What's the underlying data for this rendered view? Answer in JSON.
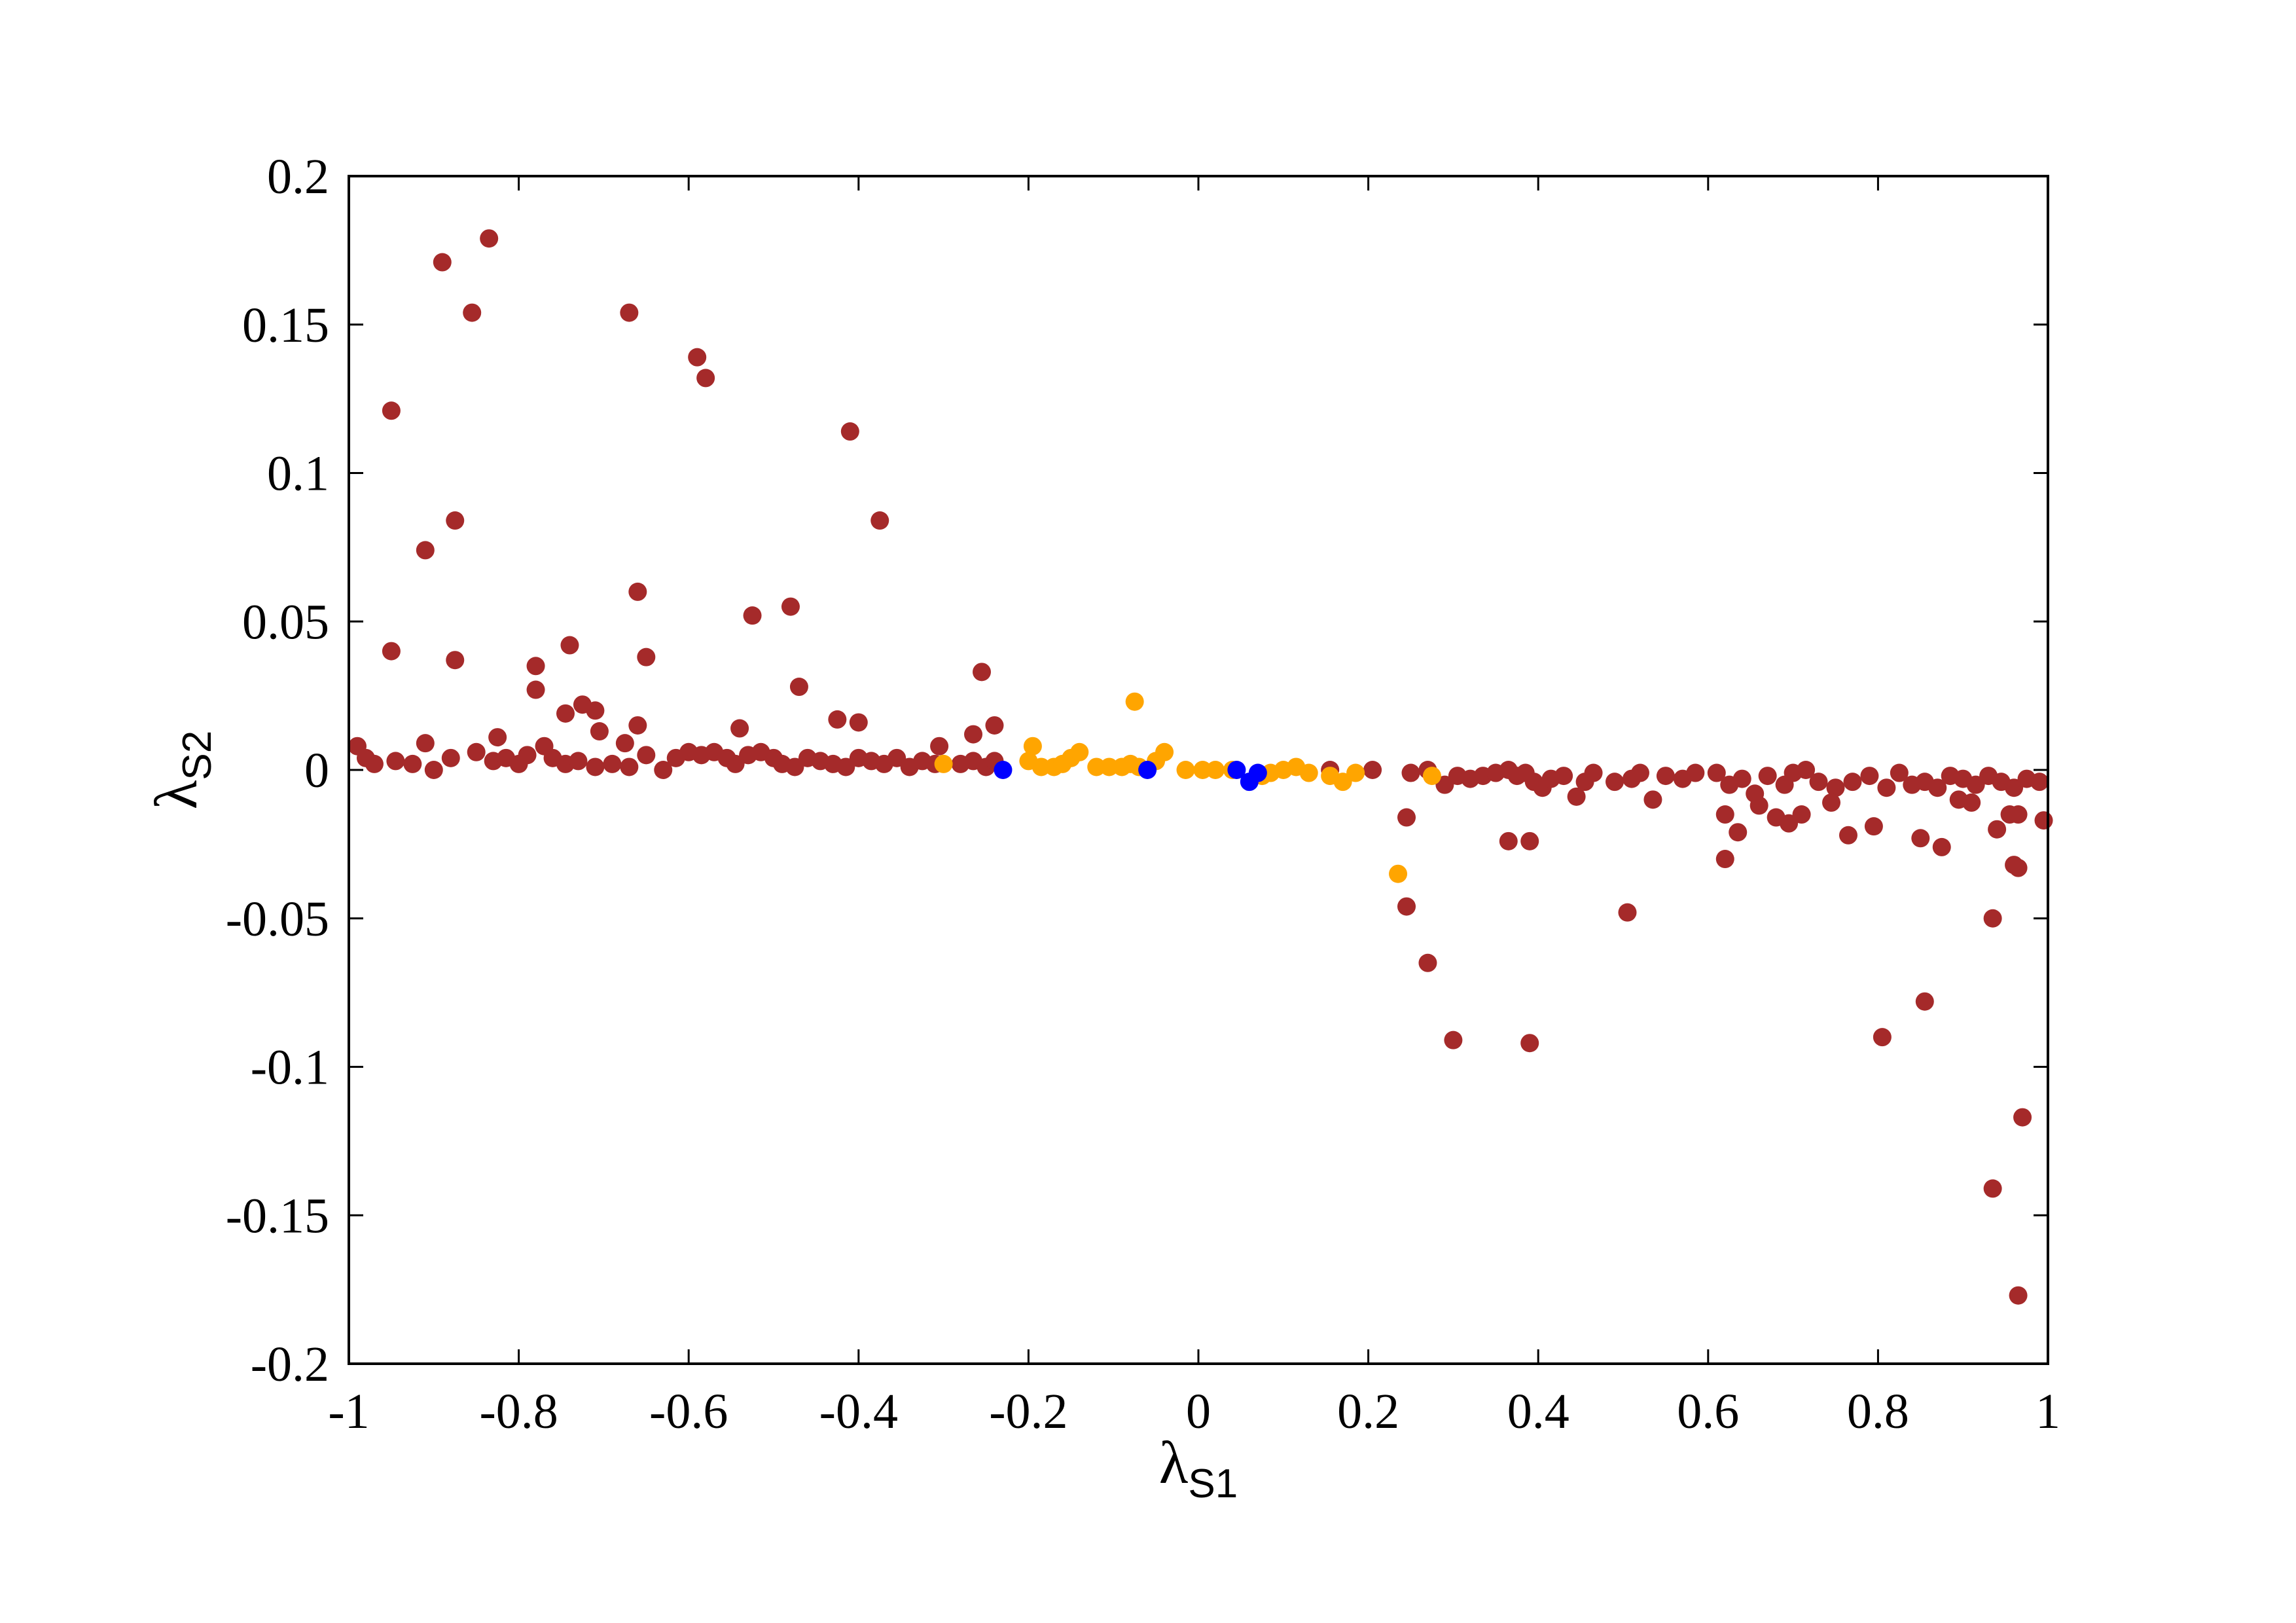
{
  "chart_data": {
    "type": "scatter",
    "xlabel": {
      "symbol": "λ",
      "subscript": "S1"
    },
    "ylabel": {
      "symbol": "λ",
      "subscript": "S2"
    },
    "xlim": [
      -1,
      1
    ],
    "ylim": [
      -0.2,
      0.2
    ],
    "xticks": [
      {
        "value": -1,
        "label": "-1"
      },
      {
        "value": -0.8,
        "label": "-0.8"
      },
      {
        "value": -0.6,
        "label": "-0.6"
      },
      {
        "value": -0.4,
        "label": "-0.4"
      },
      {
        "value": -0.2,
        "label": "-0.2"
      },
      {
        "value": 0,
        "label": "0"
      },
      {
        "value": 0.2,
        "label": "0.2"
      },
      {
        "value": 0.4,
        "label": "0.4"
      },
      {
        "value": 0.6,
        "label": "0.6"
      },
      {
        "value": 0.8,
        "label": "0.8"
      },
      {
        "value": 1,
        "label": "1"
      }
    ],
    "yticks": [
      {
        "value": 0.2,
        "label": "0.2"
      },
      {
        "value": 0.15,
        "label": "0.15"
      },
      {
        "value": 0.1,
        "label": "0.1"
      },
      {
        "value": 0.05,
        "label": "0.05"
      },
      {
        "value": 0,
        "label": "0"
      },
      {
        "value": -0.05,
        "label": "-0.05"
      },
      {
        "value": -0.1,
        "label": "-0.1"
      },
      {
        "value": -0.15,
        "label": "-0.15"
      },
      {
        "value": -0.2,
        "label": "-0.2"
      }
    ],
    "grid": false,
    "legend": "none",
    "series": [
      {
        "color": "#a52a2a",
        "points": [
          [
            -0.95,
            0.121
          ],
          [
            -0.89,
            0.171
          ],
          [
            -0.855,
            0.154
          ],
          [
            -0.835,
            0.179
          ],
          [
            -0.67,
            0.154
          ],
          [
            -0.59,
            0.139
          ],
          [
            -0.58,
            0.132
          ],
          [
            -0.41,
            0.114
          ],
          [
            -0.375,
            0.084
          ],
          [
            -0.875,
            0.084
          ],
          [
            -0.91,
            0.074
          ],
          [
            -0.66,
            0.06
          ],
          [
            -0.48,
            0.055
          ],
          [
            -0.525,
            0.052
          ],
          [
            -0.95,
            0.04
          ],
          [
            -0.875,
            0.037
          ],
          [
            -0.65,
            0.038
          ],
          [
            -0.78,
            0.035
          ],
          [
            -0.74,
            0.042
          ],
          [
            -0.255,
            0.033
          ],
          [
            -0.47,
            0.028
          ],
          [
            -0.78,
            0.027
          ],
          [
            -0.725,
            0.022
          ],
          [
            -0.71,
            0.02
          ],
          [
            -0.745,
            0.019
          ],
          [
            -0.425,
            0.017
          ],
          [
            -0.4,
            0.016
          ],
          [
            -0.66,
            0.015
          ],
          [
            -0.705,
            0.013
          ],
          [
            -0.54,
            0.014
          ],
          [
            -0.265,
            0.012
          ],
          [
            -0.24,
            0.015
          ],
          [
            -0.825,
            0.011
          ],
          [
            -0.675,
            0.009
          ],
          [
            -0.91,
            0.009
          ],
          [
            -0.305,
            0.008
          ],
          [
            -0.99,
            0.008
          ],
          [
            -0.98,
            0.004
          ],
          [
            -0.97,
            0.002
          ],
          [
            -0.945,
            0.003
          ],
          [
            -0.925,
            0.002
          ],
          [
            -0.9,
            0.0
          ],
          [
            -0.88,
            0.004
          ],
          [
            -0.85,
            0.006
          ],
          [
            -0.83,
            0.003
          ],
          [
            -0.815,
            0.004
          ],
          [
            -0.8,
            0.002
          ],
          [
            -0.79,
            0.005
          ],
          [
            -0.77,
            0.008
          ],
          [
            -0.76,
            0.004
          ],
          [
            -0.745,
            0.002
          ],
          [
            -0.73,
            0.003
          ],
          [
            -0.71,
            0.001
          ],
          [
            -0.69,
            0.002
          ],
          [
            -0.67,
            0.001
          ],
          [
            -0.65,
            0.005
          ],
          [
            -0.63,
            0.0
          ],
          [
            -0.615,
            0.004
          ],
          [
            -0.6,
            0.006
          ],
          [
            -0.585,
            0.005
          ],
          [
            -0.57,
            0.006
          ],
          [
            -0.555,
            0.004
          ],
          [
            -0.545,
            0.002
          ],
          [
            -0.53,
            0.005
          ],
          [
            -0.515,
            0.006
          ],
          [
            -0.5,
            0.004
          ],
          [
            -0.49,
            0.002
          ],
          [
            -0.475,
            0.001
          ],
          [
            -0.46,
            0.004
          ],
          [
            -0.445,
            0.003
          ],
          [
            -0.43,
            0.002
          ],
          [
            -0.415,
            0.001
          ],
          [
            -0.4,
            0.004
          ],
          [
            -0.385,
            0.003
          ],
          [
            -0.37,
            0.002
          ],
          [
            -0.355,
            0.004
          ],
          [
            -0.34,
            0.001
          ],
          [
            -0.325,
            0.003
          ],
          [
            -0.31,
            0.002
          ],
          [
            -0.28,
            0.002
          ],
          [
            -0.265,
            0.003
          ],
          [
            -0.25,
            0.001
          ],
          [
            -0.24,
            0.003
          ],
          [
            0.155,
            0.0
          ],
          [
            0.205,
            0.0
          ],
          [
            0.25,
            -0.001
          ],
          [
            0.27,
            0.0
          ],
          [
            0.29,
            -0.005
          ],
          [
            0.305,
            -0.002
          ],
          [
            0.32,
            -0.003
          ],
          [
            0.335,
            -0.002
          ],
          [
            0.35,
            -0.001
          ],
          [
            0.365,
            0.0
          ],
          [
            0.375,
            -0.002
          ],
          [
            0.385,
            -0.001
          ],
          [
            0.395,
            -0.004
          ],
          [
            0.405,
            -0.006
          ],
          [
            0.415,
            -0.003
          ],
          [
            0.43,
            -0.002
          ],
          [
            0.445,
            -0.009
          ],
          [
            0.455,
            -0.004
          ],
          [
            0.465,
            -0.001
          ],
          [
            0.49,
            -0.004
          ],
          [
            0.51,
            -0.003
          ],
          [
            0.52,
            -0.001
          ],
          [
            0.535,
            -0.01
          ],
          [
            0.55,
            -0.002
          ],
          [
            0.57,
            -0.003
          ],
          [
            0.585,
            -0.001
          ],
          [
            0.61,
            -0.001
          ],
          [
            0.625,
            -0.005
          ],
          [
            0.64,
            -0.003
          ],
          [
            0.655,
            -0.008
          ],
          [
            0.67,
            -0.002
          ],
          [
            0.69,
            -0.005
          ],
          [
            0.7,
            -0.001
          ],
          [
            0.715,
            0.0
          ],
          [
            0.73,
            -0.004
          ],
          [
            0.75,
            -0.006
          ],
          [
            0.77,
            -0.004
          ],
          [
            0.79,
            -0.002
          ],
          [
            0.81,
            -0.006
          ],
          [
            0.825,
            -0.001
          ],
          [
            0.84,
            -0.005
          ],
          [
            0.855,
            -0.004
          ],
          [
            0.87,
            -0.006
          ],
          [
            0.885,
            -0.002
          ],
          [
            0.9,
            -0.003
          ],
          [
            0.915,
            -0.005
          ],
          [
            0.93,
            -0.002
          ],
          [
            0.945,
            -0.004
          ],
          [
            0.96,
            -0.006
          ],
          [
            0.975,
            -0.003
          ],
          [
            0.99,
            -0.004
          ],
          [
            0.62,
            -0.015
          ],
          [
            0.635,
            -0.021
          ],
          [
            0.66,
            -0.012
          ],
          [
            0.68,
            -0.016
          ],
          [
            0.695,
            -0.018
          ],
          [
            0.71,
            -0.015
          ],
          [
            0.745,
            -0.011
          ],
          [
            0.765,
            -0.022
          ],
          [
            0.795,
            -0.019
          ],
          [
            0.85,
            -0.023
          ],
          [
            0.875,
            -0.026
          ],
          [
            0.895,
            -0.01
          ],
          [
            0.91,
            -0.011
          ],
          [
            0.94,
            -0.02
          ],
          [
            0.955,
            -0.015
          ],
          [
            0.965,
            -0.015
          ],
          [
            0.995,
            -0.017
          ],
          [
            0.62,
            -0.03
          ],
          [
            0.96,
            -0.032
          ],
          [
            0.965,
            -0.033
          ],
          [
            0.365,
            -0.024
          ],
          [
            0.39,
            -0.024
          ],
          [
            0.245,
            -0.016
          ],
          [
            0.505,
            -0.048
          ],
          [
            0.245,
            -0.046
          ],
          [
            0.935,
            -0.05
          ],
          [
            0.27,
            -0.065
          ],
          [
            0.855,
            -0.078
          ],
          [
            0.3,
            -0.091
          ],
          [
            0.39,
            -0.092
          ],
          [
            0.805,
            -0.09
          ],
          [
            0.97,
            -0.117
          ],
          [
            0.935,
            -0.141
          ],
          [
            0.965,
            -0.177
          ]
        ]
      },
      {
        "color": "#ffa500",
        "points": [
          [
            -0.3,
            0.002
          ],
          [
            -0.2,
            0.003
          ],
          [
            -0.195,
            0.008
          ],
          [
            -0.185,
            0.001
          ],
          [
            -0.17,
            0.001
          ],
          [
            -0.16,
            0.002
          ],
          [
            -0.15,
            0.004
          ],
          [
            -0.14,
            0.006
          ],
          [
            -0.12,
            0.001
          ],
          [
            -0.105,
            0.001
          ],
          [
            -0.09,
            0.001
          ],
          [
            -0.08,
            0.002
          ],
          [
            -0.07,
            0.001
          ],
          [
            -0.05,
            0.003
          ],
          [
            -0.04,
            0.006
          ],
          [
            -0.015,
            0.0
          ],
          [
            0.005,
            0.0
          ],
          [
            0.02,
            0.0
          ],
          [
            0.04,
            0.0
          ],
          [
            0.075,
            -0.002
          ],
          [
            0.085,
            -0.001
          ],
          [
            0.1,
            0.0
          ],
          [
            0.115,
            0.001
          ],
          [
            0.13,
            -0.001
          ],
          [
            0.155,
            -0.002
          ],
          [
            0.17,
            -0.004
          ],
          [
            0.185,
            -0.001
          ],
          [
            -0.075,
            0.023
          ],
          [
            0.235,
            -0.035
          ],
          [
            0.275,
            -0.002
          ]
        ]
      },
      {
        "color": "#0000ff",
        "points": [
          [
            -0.23,
            0.0
          ],
          [
            -0.06,
            0.0
          ],
          [
            0.045,
            0.0
          ],
          [
            0.06,
            -0.004
          ],
          [
            0.07,
            -0.001
          ]
        ]
      }
    ]
  }
}
